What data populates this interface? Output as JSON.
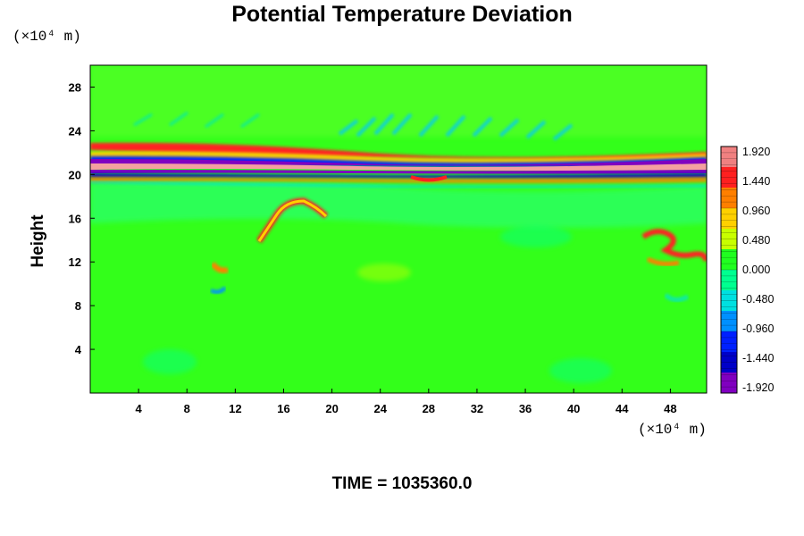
{
  "chart_data": {
    "type": "heatmap",
    "title": "Potential Temperature Deviation",
    "xlabel": "",
    "ylabel": "Height",
    "x_units": "(×10⁴ m)",
    "y_units": "(×10⁴ m)",
    "footer": "TIME = 1035360.0",
    "xlim": [
      0,
      51
    ],
    "ylim": [
      0,
      30
    ],
    "x_ticks": [
      4,
      8,
      12,
      16,
      20,
      24,
      28,
      32,
      36,
      40,
      44,
      48
    ],
    "y_ticks": [
      4,
      8,
      12,
      16,
      20,
      24,
      28
    ],
    "colorbar": {
      "vmin": -1.92,
      "vmax": 1.92,
      "labels": [
        "1.920",
        "1.440",
        "0.960",
        "0.480",
        "0.000",
        "-0.480",
        "-0.960",
        "-1.440",
        "-1.920"
      ],
      "colors": [
        "#f08080",
        "#ff2020",
        "#ff7f00",
        "#ffd000",
        "#c8ff00",
        "#20ff20",
        "#00ff90",
        "#00e0e0",
        "#0090ff",
        "#0020ff",
        "#0000c8",
        "#8000c0"
      ]
    },
    "background_value": 0.0,
    "features": [
      {
        "name": "warm band",
        "y_center": 20.6,
        "value": 1.92
      },
      {
        "name": "cold band upper",
        "y_center": 21.4,
        "value": -1.92
      },
      {
        "name": "cold band lower",
        "y_center": 20.0,
        "value": -1.92
      }
    ]
  }
}
